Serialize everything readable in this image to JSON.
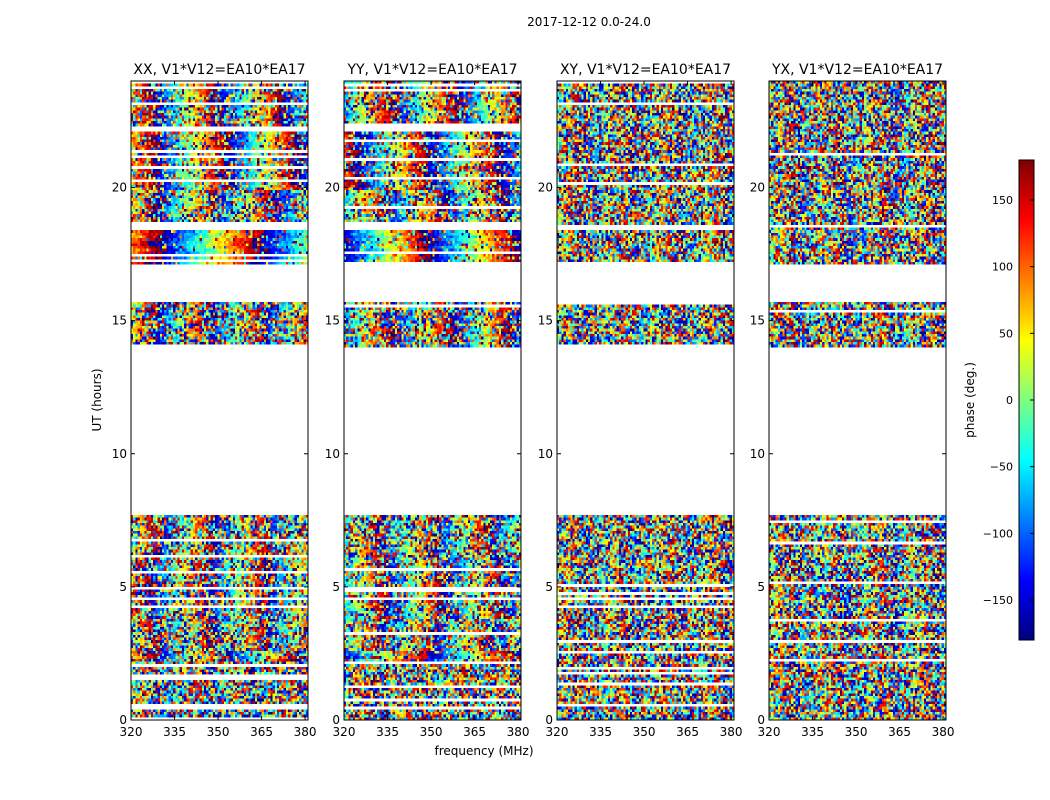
{
  "chart_data": {
    "type": "heatmap",
    "title": "2017-12-12 0.0-24.0",
    "xlabel": "frequency (MHz)",
    "ylabel": "UT (hours)",
    "xlim": [
      320,
      381
    ],
    "ylim": [
      0,
      24
    ],
    "x_ticks": [
      320,
      335,
      350,
      365,
      380
    ],
    "x_tick_labels": [
      "320",
      "335",
      "350",
      "365",
      "380"
    ],
    "y_ticks": [
      0,
      5,
      10,
      15,
      20
    ],
    "y_tick_labels": [
      "0",
      "5",
      "10",
      "15",
      "20"
    ],
    "colorbar": {
      "label": "phase (deg.)",
      "range": [
        -180,
        180
      ],
      "ticks": [
        -150,
        -100,
        -50,
        0,
        50,
        100,
        150
      ],
      "tick_labels": [
        "−150",
        "−100",
        "−50",
        "0",
        "50",
        "100",
        "150"
      ],
      "colormap": [
        "#00007f",
        "#0000ff",
        "#007fff",
        "#00ffff",
        "#7fff7f",
        "#ffff00",
        "#ff7f00",
        "#ff0000",
        "#7f0000"
      ]
    },
    "data_gaps_hours": [
      [
        7.7,
        14.0
      ],
      [
        16.6,
        17.1
      ],
      [
        18.45,
        18.75
      ],
      [
        22.1,
        22.3
      ]
    ],
    "panels": [
      {
        "name": "xx",
        "title": "XX, V1*V12=EA10*EA17",
        "bands": [
          {
            "t": [
              0.0,
              2.2
            ],
            "phase": 0,
            "noise": 1.0
          },
          {
            "t": [
              2.2,
              2.6
            ],
            "phase": 60,
            "noise": 0.5
          },
          {
            "t": [
              2.6,
              3.8
            ],
            "phase": 20,
            "noise": 0.8
          },
          {
            "t": [
              3.8,
              6.0
            ],
            "phase": 90,
            "noise": 0.7
          },
          {
            "t": [
              6.0,
              7.7
            ],
            "phase": 20,
            "noise": 0.8
          },
          {
            "t": [
              14.0,
              15.7
            ],
            "phase": 40,
            "noise": 0.8
          },
          {
            "t": [
              17.1,
              18.45
            ],
            "phase": 95,
            "noise": 0.2
          },
          {
            "t": [
              18.75,
              19.9
            ],
            "phase": 40,
            "noise": 0.7
          },
          {
            "t": [
              19.9,
              22.1
            ],
            "phase": 70,
            "noise": 0.5
          },
          {
            "t": [
              22.3,
              24.0
            ],
            "phase": 70,
            "noise": 0.6
          }
        ]
      },
      {
        "name": "yy",
        "title": "YY, V1*V12=EA10*EA17",
        "bands": [
          {
            "t": [
              0.0,
              2.2
            ],
            "phase": -30,
            "noise": 1.0
          },
          {
            "t": [
              2.2,
              2.6
            ],
            "phase": -150,
            "noise": 0.3
          },
          {
            "t": [
              2.6,
              3.8
            ],
            "phase": -40,
            "noise": 0.8
          },
          {
            "t": [
              3.8,
              6.0
            ],
            "phase": -60,
            "noise": 0.7
          },
          {
            "t": [
              6.0,
              7.7
            ],
            "phase": -50,
            "noise": 0.8
          },
          {
            "t": [
              14.0,
              15.7
            ],
            "phase": -100,
            "noise": 0.7
          },
          {
            "t": [
              17.1,
              18.45
            ],
            "phase": -150,
            "noise": 0.3
          },
          {
            "t": [
              18.75,
              19.9
            ],
            "phase": -60,
            "noise": 0.7
          },
          {
            "t": [
              19.9,
              22.1
            ],
            "phase": 130,
            "noise": 0.5
          },
          {
            "t": [
              22.3,
              24.0
            ],
            "phase": -80,
            "noise": 0.6
          }
        ]
      },
      {
        "name": "xy",
        "title": "XY, V1*V12=EA10*EA17",
        "bands": [
          {
            "t": [
              0.0,
              7.7
            ],
            "phase": 0,
            "noise": 1.0
          },
          {
            "t": [
              14.0,
              15.7
            ],
            "phase": 0,
            "noise": 1.0
          },
          {
            "t": [
              17.1,
              24.0
            ],
            "phase": 0,
            "noise": 1.0
          }
        ]
      },
      {
        "name": "yx",
        "title": "YX, V1*V12=EA10*EA17",
        "bands": [
          {
            "t": [
              0.0,
              7.7
            ],
            "phase": 0,
            "noise": 1.0
          },
          {
            "t": [
              14.0,
              15.7
            ],
            "phase": 0,
            "noise": 1.0
          },
          {
            "t": [
              17.1,
              24.0
            ],
            "phase": 0,
            "noise": 1.0
          }
        ]
      }
    ]
  }
}
